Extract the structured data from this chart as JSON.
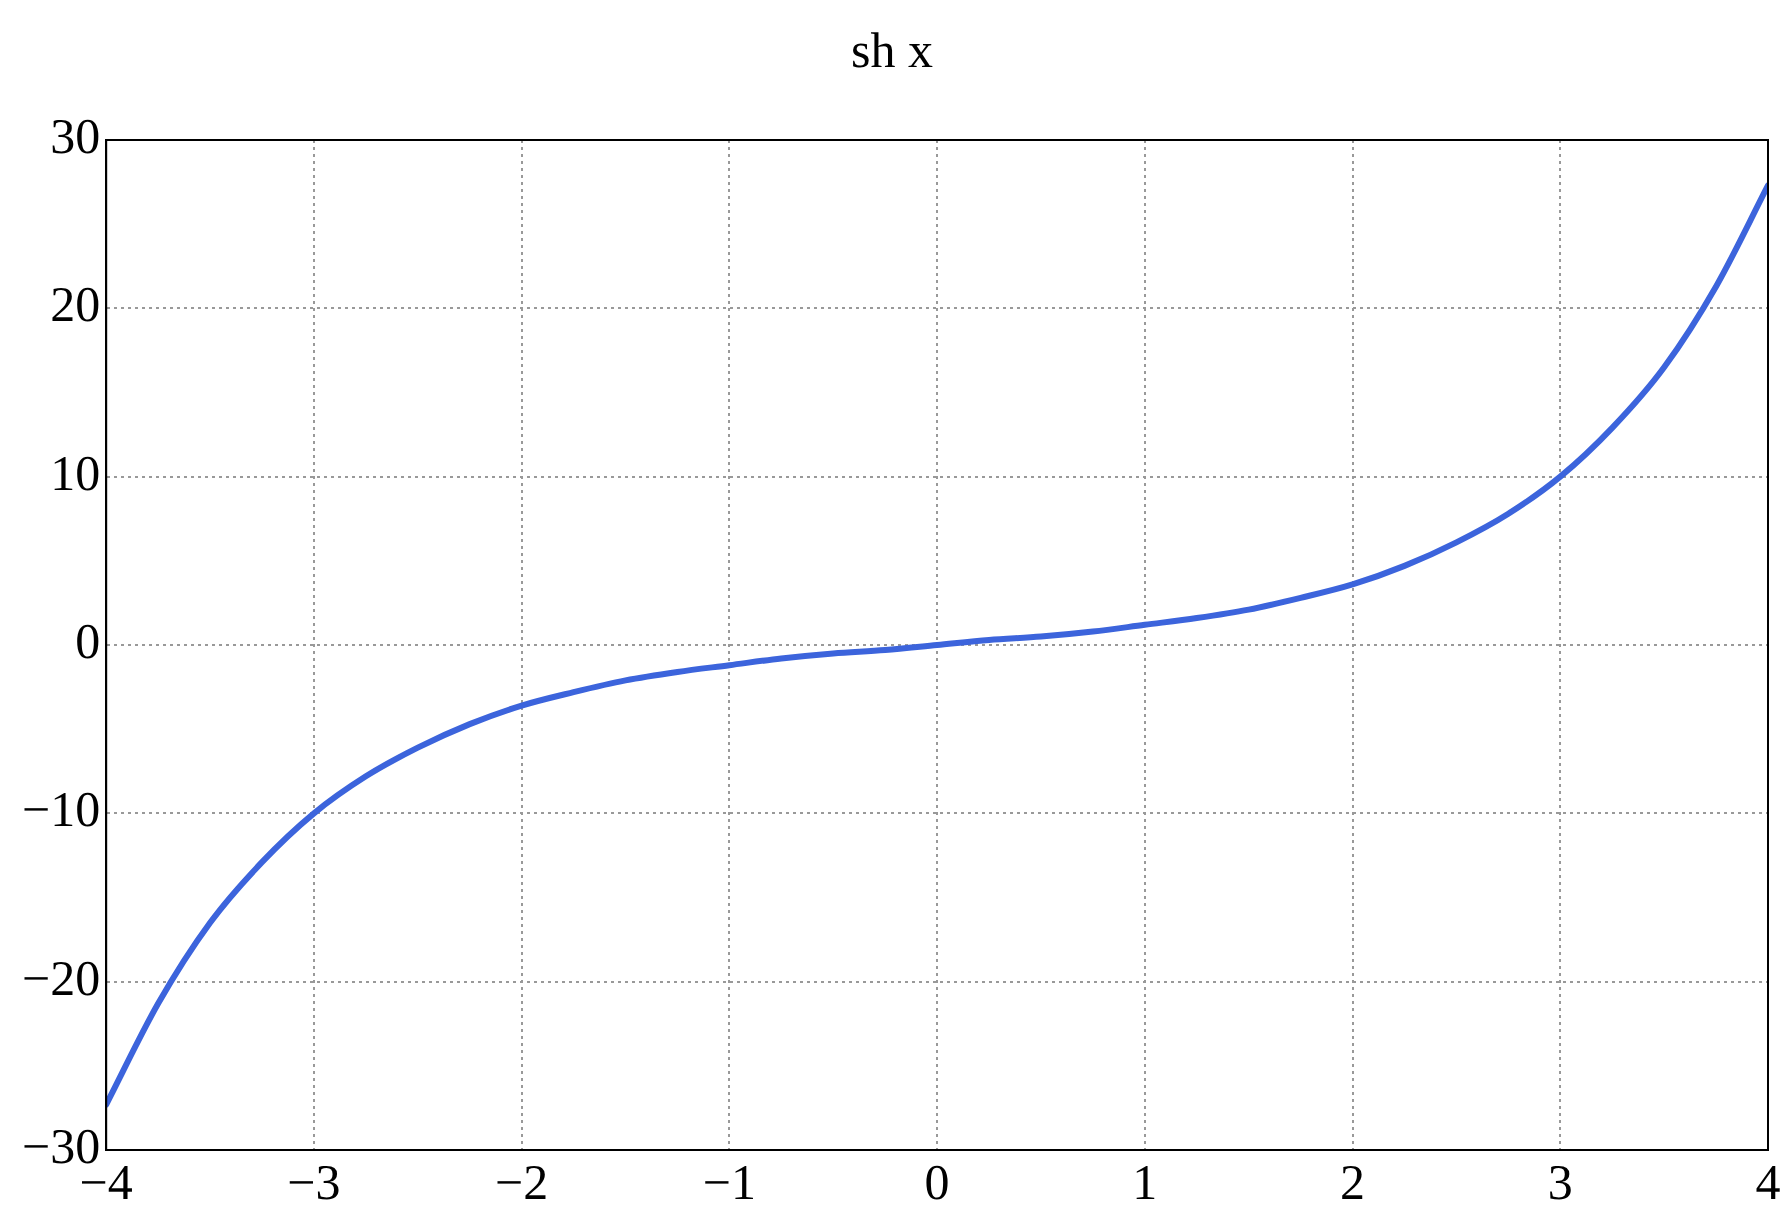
{
  "chart_data": {
    "type": "line",
    "title": "sh x",
    "x": [
      -4,
      -3.75,
      -3.5,
      -3.25,
      -3,
      -2.75,
      -2.5,
      -2.25,
      -2,
      -1.75,
      -1.5,
      -1.25,
      -1,
      -0.75,
      -0.5,
      -0.25,
      0,
      0.25,
      0.5,
      0.75,
      1,
      1.25,
      1.5,
      1.75,
      2,
      2.25,
      2.5,
      2.75,
      3,
      3.25,
      3.5,
      3.75,
      4
    ],
    "series": [
      {
        "color": "#3c64dc",
        "values": [
          -27.3,
          -21.3,
          -16.5,
          -12.9,
          -10.0,
          -7.8,
          -6.1,
          -4.7,
          -3.6,
          -2.8,
          -2.1,
          -1.6,
          -1.2,
          -0.8,
          -0.5,
          -0.3,
          0,
          0.3,
          0.5,
          0.8,
          1.2,
          1.6,
          2.1,
          2.8,
          3.6,
          4.7,
          6.1,
          7.8,
          10.0,
          12.9,
          16.5,
          21.3,
          27.3
        ]
      }
    ],
    "xlim": [
      -4,
      4
    ],
    "ylim": [
      -30,
      30
    ],
    "xticks": [
      {
        "value": -4,
        "label": "−4"
      },
      {
        "value": -3,
        "label": "−3"
      },
      {
        "value": -2,
        "label": "−2"
      },
      {
        "value": -1,
        "label": "−1"
      },
      0,
      1,
      2,
      3,
      4
    ],
    "yticks": [
      {
        "value": -30,
        "label": "−30"
      },
      {
        "value": -20,
        "label": "−20"
      },
      {
        "value": -10,
        "label": "−10"
      },
      0,
      10,
      20,
      30
    ],
    "grid": true,
    "line_style": "solid",
    "marker": "none"
  }
}
